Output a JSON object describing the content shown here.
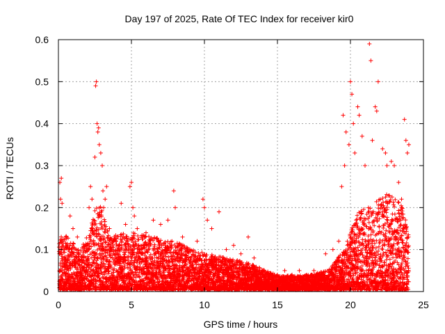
{
  "chart_data": {
    "type": "scatter",
    "title": "Day 197 of 2025, Rate Of TEC Index for receiver kir0",
    "xlabel": "GPS time / hours",
    "ylabel": "ROTI / TECUs",
    "xlim": [
      0,
      25
    ],
    "ylim": [
      0,
      0.6
    ],
    "x_ticks": [
      0,
      5,
      10,
      15,
      20,
      25
    ],
    "y_ticks": [
      0,
      0.1,
      0.2,
      0.3,
      0.4,
      0.5,
      0.6
    ],
    "x_tick_labels": [
      "0",
      "5",
      "10",
      "15",
      "20",
      "25"
    ],
    "y_tick_labels": [
      "0",
      "0.1",
      "0.2",
      "0.3",
      "0.4",
      "0.5",
      "0.6"
    ],
    "grid": true,
    "marker": "+",
    "marker_color": "#ff0000",
    "series": [
      {
        "name": "kir0",
        "points": [
          [
            0.1,
            0.26
          ],
          [
            0.15,
            0.22
          ],
          [
            0.2,
            0.27
          ],
          [
            0.25,
            0.21
          ],
          [
            0.3,
            0.12
          ],
          [
            0.4,
            0.1
          ],
          [
            0.8,
            0.18
          ],
          [
            1.0,
            0.15
          ],
          [
            1.3,
            0.13
          ],
          [
            2.1,
            0.2
          ],
          [
            2.2,
            0.25
          ],
          [
            2.3,
            0.22
          ],
          [
            2.4,
            0.14
          ],
          [
            2.5,
            0.32
          ],
          [
            2.55,
            0.49
          ],
          [
            2.6,
            0.5
          ],
          [
            2.65,
            0.4
          ],
          [
            2.7,
            0.38
          ],
          [
            2.75,
            0.39
          ],
          [
            2.8,
            0.35
          ],
          [
            2.9,
            0.33
          ],
          [
            3.0,
            0.3
          ],
          [
            3.05,
            0.24
          ],
          [
            3.1,
            0.2
          ],
          [
            3.2,
            0.22
          ],
          [
            3.3,
            0.25
          ],
          [
            3.5,
            0.15
          ],
          [
            3.8,
            0.12
          ],
          [
            4.3,
            0.21
          ],
          [
            4.6,
            0.16
          ],
          [
            4.9,
            0.25
          ],
          [
            5.0,
            0.26
          ],
          [
            5.1,
            0.2
          ],
          [
            5.2,
            0.18
          ],
          [
            5.4,
            0.15
          ],
          [
            6.0,
            0.14
          ],
          [
            6.5,
            0.17
          ],
          [
            7.0,
            0.16
          ],
          [
            7.5,
            0.17
          ],
          [
            7.9,
            0.24
          ],
          [
            8.0,
            0.2
          ],
          [
            8.5,
            0.13
          ],
          [
            9.0,
            0.1
          ],
          [
            9.5,
            0.12
          ],
          [
            9.9,
            0.22
          ],
          [
            10.0,
            0.2
          ],
          [
            10.2,
            0.17
          ],
          [
            10.5,
            0.15
          ],
          [
            11.0,
            0.19
          ],
          [
            11.5,
            0.1
          ],
          [
            12.0,
            0.11
          ],
          [
            12.5,
            0.09
          ],
          [
            13.0,
            0.13
          ],
          [
            13.4,
            0.08
          ],
          [
            14.0,
            0.05
          ],
          [
            14.5,
            0.04
          ],
          [
            15.0,
            0.04
          ],
          [
            15.5,
            0.05
          ],
          [
            16.0,
            0.04
          ],
          [
            16.5,
            0.05
          ],
          [
            17.0,
            0.04
          ],
          [
            17.5,
            0.05
          ],
          [
            18.0,
            0.03
          ],
          [
            18.3,
            0.09
          ],
          [
            18.8,
            0.1
          ],
          [
            19.2,
            0.12
          ],
          [
            19.4,
            0.25
          ],
          [
            19.5,
            0.42
          ],
          [
            19.6,
            0.3
          ],
          [
            19.7,
            0.38
          ],
          [
            19.9,
            0.35
          ],
          [
            20.0,
            0.5
          ],
          [
            20.1,
            0.47
          ],
          [
            20.2,
            0.4
          ],
          [
            20.3,
            0.33
          ],
          [
            20.5,
            0.44
          ],
          [
            20.6,
            0.42
          ],
          [
            20.8,
            0.37
          ],
          [
            21.0,
            0.3
          ],
          [
            21.3,
            0.59
          ],
          [
            21.4,
            0.55
          ],
          [
            21.5,
            0.36
          ],
          [
            21.7,
            0.44
          ],
          [
            21.8,
            0.43
          ],
          [
            21.9,
            0.5
          ],
          [
            22.2,
            0.34
          ],
          [
            22.4,
            0.33
          ],
          [
            22.5,
            0.3
          ],
          [
            22.8,
            0.31
          ],
          [
            23.0,
            0.3
          ],
          [
            23.3,
            0.26
          ],
          [
            23.5,
            0.22
          ],
          [
            23.7,
            0.41
          ],
          [
            23.8,
            0.36
          ],
          [
            23.9,
            0.33
          ],
          [
            24.0,
            0.35
          ]
        ]
      }
    ],
    "background_envelope": [
      [
        0,
        0.1
      ],
      [
        0.4,
        0.12
      ],
      [
        1.5,
        0.08
      ],
      [
        2.2,
        0.13
      ],
      [
        2.8,
        0.2
      ],
      [
        3.5,
        0.11
      ],
      [
        5.0,
        0.12
      ],
      [
        6.5,
        0.11
      ],
      [
        8.0,
        0.1
      ],
      [
        9.5,
        0.08
      ],
      [
        11.0,
        0.07
      ],
      [
        12.5,
        0.06
      ],
      [
        13.5,
        0.05
      ],
      [
        15.0,
        0.03
      ],
      [
        17.0,
        0.03
      ],
      [
        18.5,
        0.04
      ],
      [
        19.5,
        0.08
      ],
      [
        20.5,
        0.16
      ],
      [
        21.5,
        0.18
      ],
      [
        22.5,
        0.2
      ],
      [
        23.5,
        0.18
      ],
      [
        24.0,
        0.12
      ]
    ]
  }
}
